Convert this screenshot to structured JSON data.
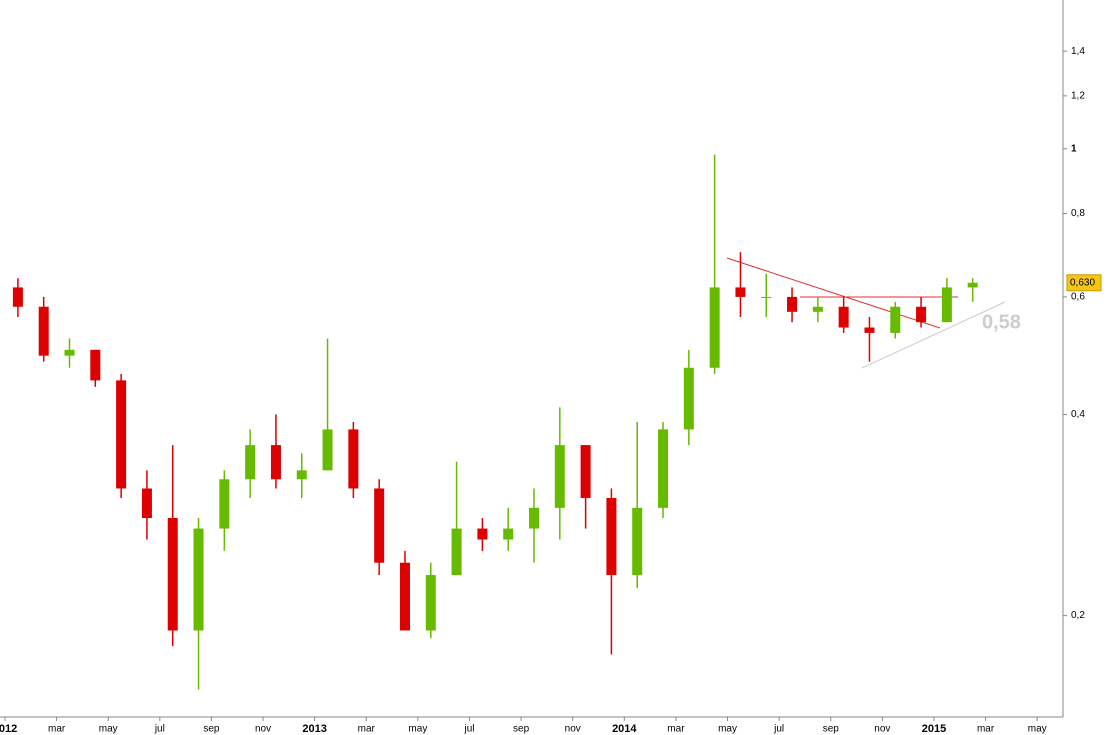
{
  "chart_data": {
    "type": "candlestick",
    "x": [
      "2012-01",
      "2012-02",
      "2012-03",
      "2012-04",
      "2012-05",
      "2012-06",
      "2012-07",
      "2012-08",
      "2012-09",
      "2012-10",
      "2012-11",
      "2012-12",
      "2013-01",
      "2013-02",
      "2013-03",
      "2013-04",
      "2013-05",
      "2013-06",
      "2013-07",
      "2013-08",
      "2013-09",
      "2013-10",
      "2013-11",
      "2013-12",
      "2014-01",
      "2014-02",
      "2014-03",
      "2014-04",
      "2014-05",
      "2014-06",
      "2014-07",
      "2014-08",
      "2014-09",
      "2014-10",
      "2014-11",
      "2014-12",
      "2015-01",
      "2015-02"
    ],
    "open": [
      0.62,
      0.58,
      0.49,
      0.5,
      0.45,
      0.31,
      0.28,
      0.19,
      0.27,
      0.32,
      0.36,
      0.32,
      0.33,
      0.38,
      0.31,
      0.24,
      0.19,
      0.23,
      0.27,
      0.26,
      0.27,
      0.29,
      0.36,
      0.3,
      0.23,
      0.29,
      0.38,
      0.47,
      0.62,
      0.6,
      0.6,
      0.57,
      0.58,
      0.54,
      0.53,
      0.58,
      0.55,
      0.62
    ],
    "high": [
      0.64,
      0.6,
      0.52,
      0.5,
      0.46,
      0.33,
      0.36,
      0.28,
      0.33,
      0.38,
      0.4,
      0.35,
      0.52,
      0.39,
      0.32,
      0.25,
      0.24,
      0.34,
      0.28,
      0.29,
      0.31,
      0.41,
      0.36,
      0.31,
      0.39,
      0.39,
      0.5,
      0.98,
      0.7,
      0.65,
      0.62,
      0.6,
      0.6,
      0.56,
      0.59,
      0.6,
      0.64,
      0.64
    ],
    "low": [
      0.56,
      0.48,
      0.47,
      0.44,
      0.3,
      0.26,
      0.18,
      0.155,
      0.25,
      0.3,
      0.31,
      0.3,
      0.33,
      0.3,
      0.23,
      0.19,
      0.185,
      0.23,
      0.25,
      0.25,
      0.24,
      0.26,
      0.27,
      0.175,
      0.22,
      0.28,
      0.36,
      0.46,
      0.56,
      0.56,
      0.55,
      0.55,
      0.53,
      0.48,
      0.52,
      0.54,
      0.55,
      0.59
    ],
    "close": [
      0.58,
      0.49,
      0.5,
      0.45,
      0.31,
      0.28,
      0.19,
      0.27,
      0.32,
      0.36,
      0.32,
      0.33,
      0.38,
      0.31,
      0.24,
      0.19,
      0.23,
      0.27,
      0.26,
      0.27,
      0.29,
      0.36,
      0.3,
      0.23,
      0.29,
      0.38,
      0.47,
      0.62,
      0.6,
      0.6,
      0.57,
      0.58,
      0.54,
      0.53,
      0.58,
      0.55,
      0.62,
      0.63
    ],
    "up_color": "#66bb00",
    "down_color": "#dd0000",
    "log_scale": true,
    "ylim": [
      0.141,
      1.67
    ],
    "yticks": [
      {
        "value": 0.2,
        "label": "0,2"
      },
      {
        "value": 0.4,
        "label": "0,4"
      },
      {
        "value": 0.6,
        "label": "0,6"
      },
      {
        "value": 0.8,
        "label": "0,8"
      },
      1,
      {
        "value": 1.2,
        "label": "1,2"
      },
      {
        "value": 1.4,
        "label": "1,4"
      }
    ],
    "xlim": [
      "2012-01",
      "2015-06"
    ],
    "xticks": [
      {
        "value": "2012-01",
        "label": "2012"
      },
      {
        "value": "2012-03",
        "label": "mar"
      },
      {
        "value": "2012-05",
        "label": "may"
      },
      {
        "value": "2012-07",
        "label": "jul"
      },
      {
        "value": "2012-09",
        "label": "sep"
      },
      {
        "value": "2012-11",
        "label": "nov"
      },
      {
        "value": "2013-01",
        "label": "2013"
      },
      {
        "value": "2013-03",
        "label": "mar"
      },
      {
        "value": "2013-05",
        "label": "may"
      },
      {
        "value": "2013-07",
        "label": "jul"
      },
      {
        "value": "2013-09",
        "label": "sep"
      },
      {
        "value": "2013-11",
        "label": "nov"
      },
      {
        "value": "2014-01",
        "label": "2014"
      },
      {
        "value": "2014-03",
        "label": "mar"
      },
      {
        "value": "2014-05",
        "label": "may"
      },
      {
        "value": "2014-07",
        "label": "jul"
      },
      {
        "value": "2014-09",
        "label": "sep"
      },
      {
        "value": "2014-11",
        "label": "nov"
      },
      {
        "value": "2015-01",
        "label": "2015"
      },
      {
        "value": "2015-03",
        "label": "mar"
      },
      {
        "value": "2015-05",
        "label": "may"
      }
    ],
    "last_price": {
      "value": 0.63,
      "label": "0,630"
    },
    "annotation": "0,58"
  }
}
